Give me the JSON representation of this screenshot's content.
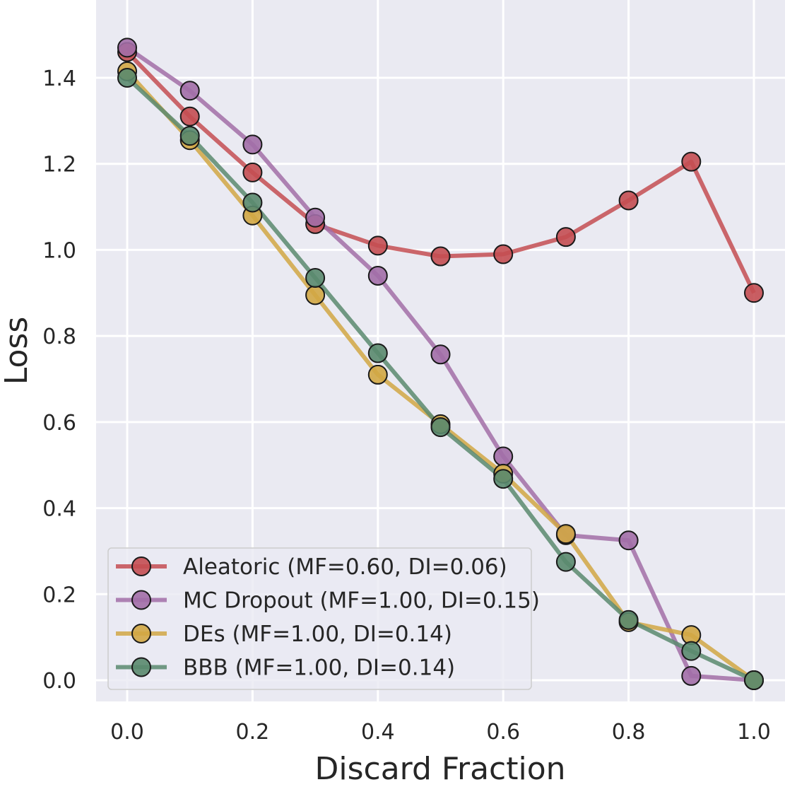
{
  "chart_data": {
    "type": "line",
    "title": "",
    "xlabel": "Discard Fraction",
    "ylabel": "Loss",
    "xlim": [
      -0.05,
      1.05
    ],
    "ylim": [
      -0.05,
      1.58
    ],
    "xticks": [
      "0.0",
      "0.2",
      "0.4",
      "0.6",
      "0.8",
      "1.0"
    ],
    "yticks": [
      "0.0",
      "0.2",
      "0.4",
      "0.6",
      "0.8",
      "1.0",
      "1.2",
      "1.4"
    ],
    "grid": true,
    "legend_position": "bottom-left",
    "x": [
      0.0,
      0.1,
      0.2,
      0.3,
      0.4,
      0.5,
      0.6,
      0.7,
      0.8,
      0.9,
      1.0
    ],
    "series": [
      {
        "name": "Aleatoric (MF=0.60, DI=0.06)",
        "color": "#c44e52",
        "values": [
          1.46,
          1.31,
          1.18,
          1.06,
          1.01,
          0.985,
          0.99,
          1.03,
          1.115,
          1.205,
          0.9
        ]
      },
      {
        "name": "MC Dropout (MF=1.00, DI=0.15)",
        "color": "#a26ea7",
        "values": [
          1.47,
          1.37,
          1.245,
          1.075,
          0.94,
          0.757,
          0.52,
          0.337,
          0.325,
          0.01,
          0.0
        ]
      },
      {
        "name": "DEs (MF=1.00, DI=0.14)",
        "color": "#d1a744",
        "values": [
          1.415,
          1.255,
          1.08,
          0.895,
          0.71,
          0.595,
          0.48,
          0.34,
          0.135,
          0.105,
          0.0
        ]
      },
      {
        "name": "BBB (MF=1.00, DI=0.14)",
        "color": "#5a8a6e",
        "values": [
          1.4,
          1.265,
          1.11,
          0.935,
          0.76,
          0.588,
          0.468,
          0.275,
          0.14,
          0.068,
          0.0
        ]
      }
    ]
  },
  "style": {
    "plot_background": "#eaeaf2",
    "grid_color": "#ffffff",
    "marker_edge": "#1a1a1a"
  }
}
